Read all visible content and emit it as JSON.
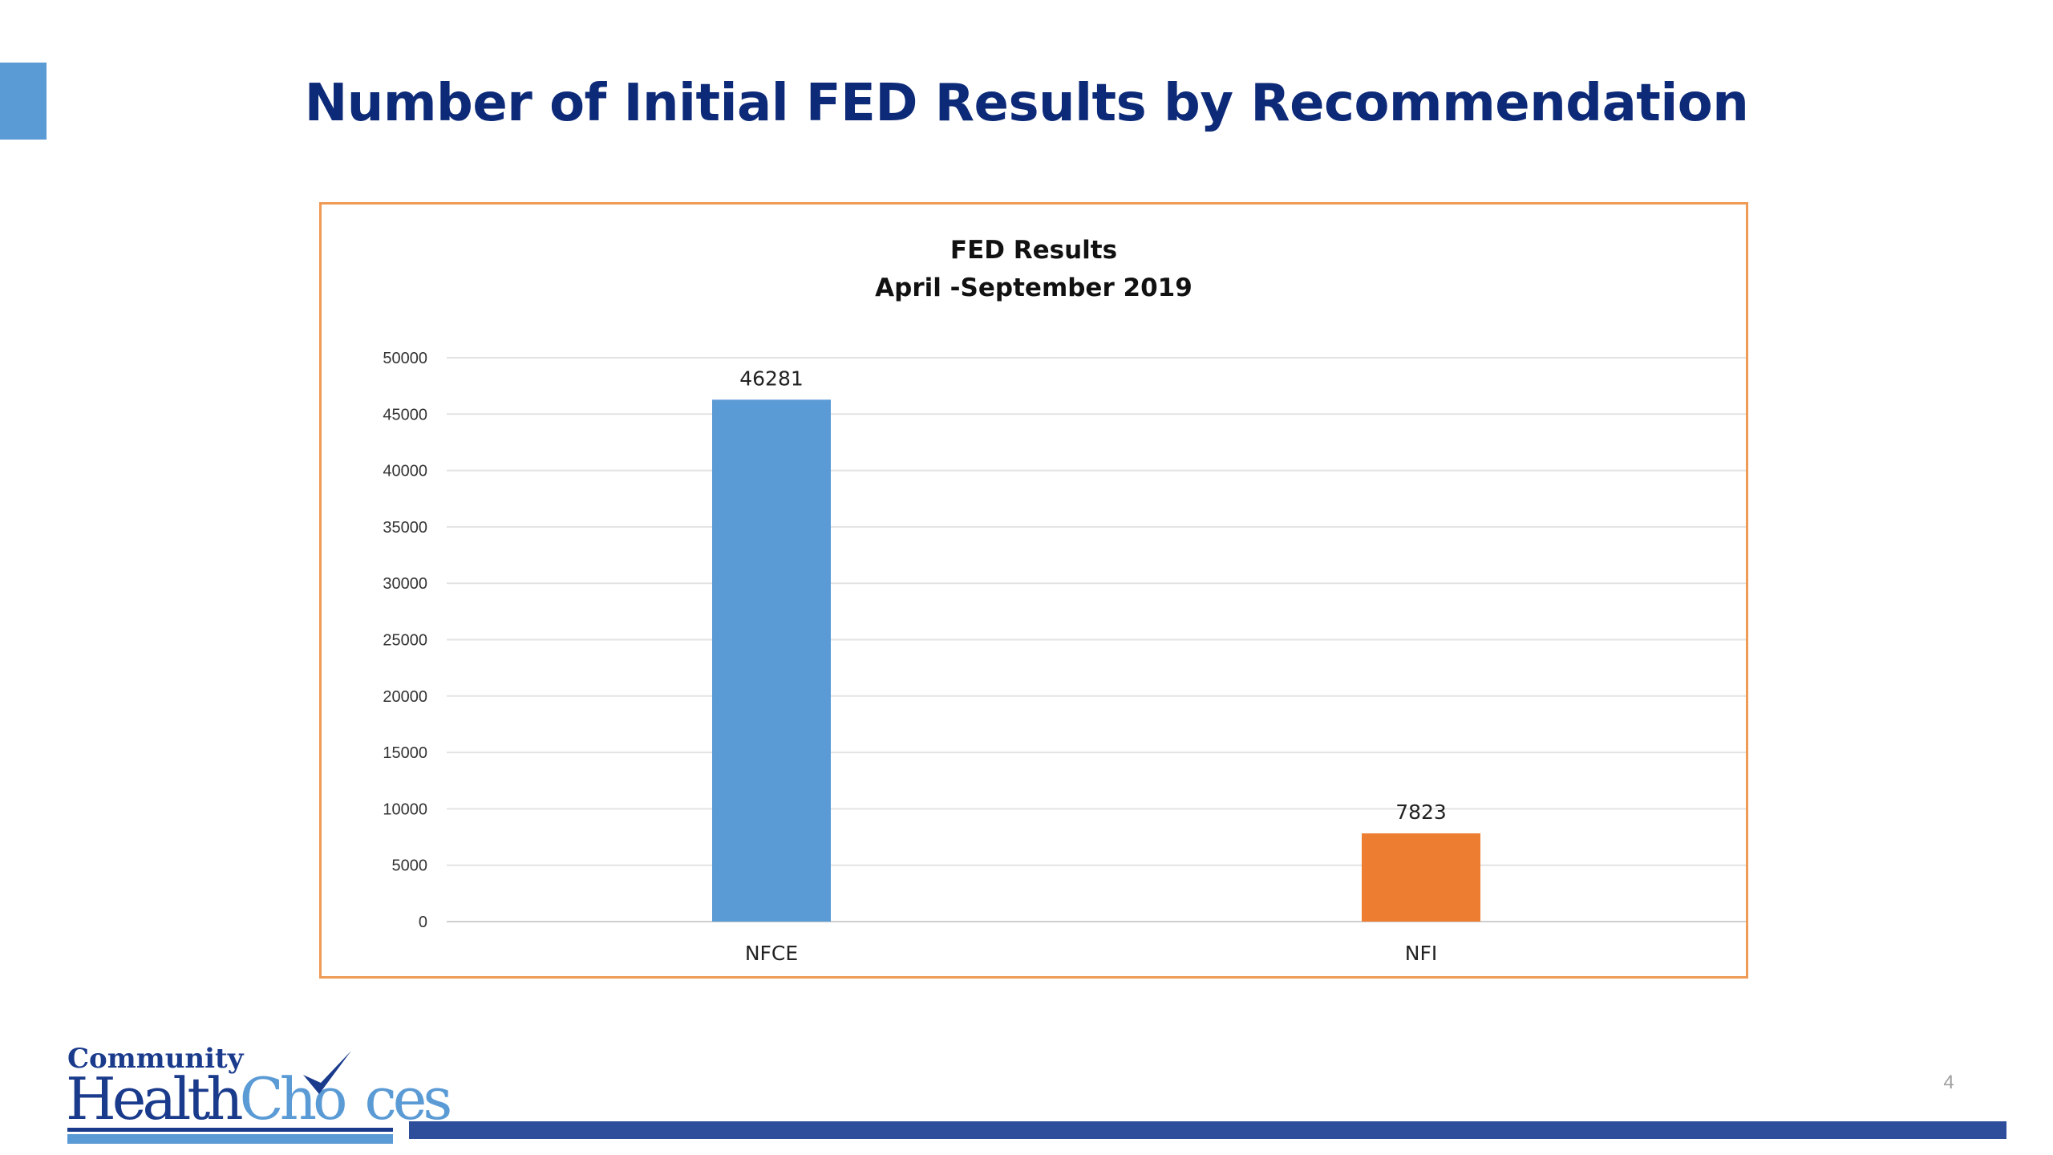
{
  "slide": {
    "title": "Number of Initial FED Results by Recommendation",
    "page_number": "4",
    "accent_color": "#5b9bd5",
    "footer_bar_color": "#2e4e9c"
  },
  "logo": {
    "top_text": "Community",
    "health_text": "Health",
    "choices_text": "Cho",
    "choices_text_end": "ces"
  },
  "chart_data": {
    "type": "bar",
    "title": "FED Results",
    "subtitle": "April -September 2019",
    "categories": [
      "NFCE",
      "NFI"
    ],
    "values": [
      46281,
      7823
    ],
    "data_labels": [
      "46281",
      "7823"
    ],
    "bar_colors": [
      "#5b9bd5",
      "#ed7d31"
    ],
    "ylim": [
      0,
      50000
    ],
    "yticks": [
      0,
      5000,
      10000,
      15000,
      20000,
      25000,
      30000,
      35000,
      40000,
      45000,
      50000
    ],
    "xlabel": "",
    "ylabel": "",
    "grid": true,
    "legend": "none"
  }
}
